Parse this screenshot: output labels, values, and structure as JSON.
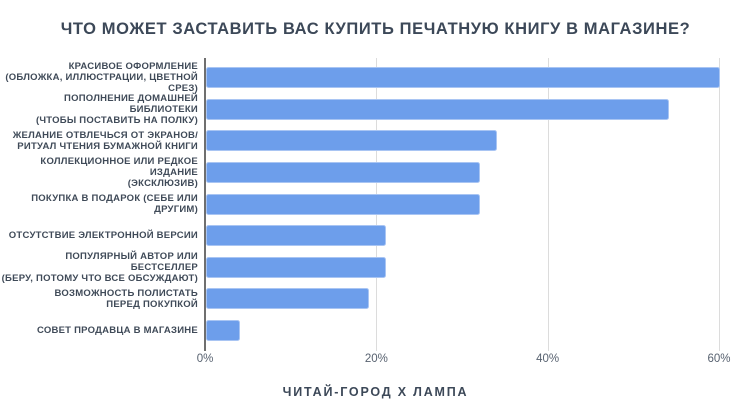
{
  "title": "ЧТО МОЖЕТ ЗАСТАВИТЬ ВАС КУПИТЬ ПЕЧАТНУЮ КНИГУ В МАГАЗИНЕ?",
  "footer": "ЧИТАЙ-ГОРОД X ЛАМПА",
  "colors": {
    "background": "#ffffff",
    "bar": "#6d9eeb",
    "bar_border": "#a9c5f3",
    "title_text": "#3c4858",
    "label_text": "#3f4a58",
    "tick_text": "#586270",
    "gridline": "#dcdcdc",
    "axis_line": "#6f6f6f"
  },
  "chart_data": {
    "type": "bar",
    "orientation": "horizontal",
    "title": "ЧТО МОЖЕТ ЗАСТАВИТЬ ВАС КУПИТЬ ПЕЧАТНУЮ КНИГУ В МАГАЗИНЕ?",
    "unit": "%",
    "categories": [
      "КРАСИВОЕ ОФОРМЛЕНИЕ (ОБЛОЖКА, ИЛЛЮСТРАЦИИ, ЦВЕТНОЙ СРЕЗ)",
      "ПОПОЛНЕНИЕ ДОМАШНЕЙ БИБЛИОТЕКИ (ЧТОБЫ ПОСТАВИТЬ НА ПОЛКУ)",
      "ЖЕЛАНИЕ ОТВЛЕЧЬСЯ ОТ ЭКРАНОВ/ РИТУАЛ ЧТЕНИЯ БУМАЖНОЙ КНИГИ",
      "КОЛЛЕКЦИОННОЕ ИЛИ РЕДКОЕ ИЗДАНИЕ (ЭКСКЛЮЗИВ)",
      "ПОКУПКА В ПОДАРОК (СЕБЕ ИЛИ ДРУГИМ)",
      "ОТСУТСТВИЕ ЭЛЕКТРОННОЙ ВЕРСИИ",
      "ПОПУЛЯРНЫЙ АВТОР ИЛИ БЕСТСЕЛЛЕР (БЕРУ, ПОТОМУ ЧТО ВСЕ ОБСУЖДАЮТ)",
      "ВОЗМОЖНОСТЬ ПОЛИСТАТЬ ПЕРЕД ПОКУПКОЙ",
      "СОВЕТ ПРОДАВЦА В МАГАЗИНЕ"
    ],
    "category_label_lines": [
      [
        "КРАСИВОЕ ОФОРМЛЕНИЕ",
        "(ОБЛОЖКА, ИЛЛЮСТРАЦИИ, ЦВЕТНОЙ СРЕЗ)"
      ],
      [
        "ПОПОЛНЕНИЕ ДОМАШНЕЙ БИБЛИОТЕКИ",
        "(ЧТОБЫ ПОСТАВИТЬ НА ПОЛКУ)"
      ],
      [
        "ЖЕЛАНИЕ ОТВЛЕЧЬСЯ ОТ ЭКРАНОВ/",
        "РИТУАЛ ЧТЕНИЯ БУМАЖНОЙ КНИГИ"
      ],
      [
        "КОЛЛЕКЦИОННОЕ ИЛИ РЕДКОЕ ИЗДАНИЕ",
        "(ЭКСКЛЮЗИВ)"
      ],
      [
        "ПОКУПКА В ПОДАРОК (СЕБЕ ИЛИ ДРУГИМ)"
      ],
      [
        "ОТСУТСТВИЕ ЭЛЕКТРОННОЙ ВЕРСИИ"
      ],
      [
        "ПОПУЛЯРНЫЙ АВТОР ИЛИ БЕСТСЕЛЛЕР",
        "(БЕРУ, ПОТОМУ ЧТО ВСЕ ОБСУЖДАЮТ)"
      ],
      [
        "ВОЗМОЖНОСТЬ ПОЛИСТАТЬ",
        "ПЕРЕД ПОКУПКОЙ"
      ],
      [
        "СОВЕТ ПРОДАВЦА В МАГАЗИНЕ"
      ]
    ],
    "values": [
      60,
      54,
      34,
      32,
      32,
      21,
      21,
      19,
      4
    ],
    "x_ticks": [
      {
        "value": 0,
        "label": "0%"
      },
      {
        "value": 20,
        "label": "20%"
      },
      {
        "value": 40,
        "label": "40%"
      },
      {
        "value": 60,
        "label": "60%"
      }
    ],
    "xlim": [
      0,
      60.7
    ],
    "grid": true,
    "legend": false,
    "source_caption": "ЧИТАЙ-ГОРОД X ЛАМПА"
  }
}
